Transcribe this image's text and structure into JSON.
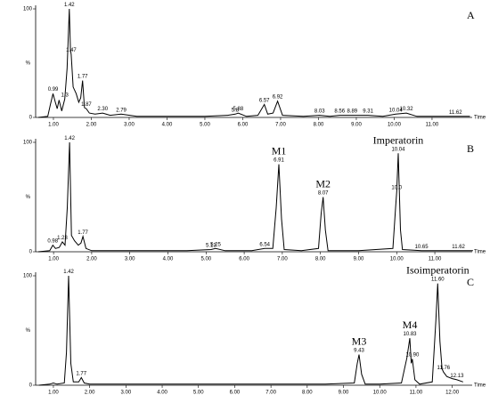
{
  "chart_data": [
    {
      "type": "line",
      "panel": "A",
      "color": "#000000",
      "xlabel": "Time",
      "ylabel": "%",
      "xlim": [
        0.53,
        12.06
      ],
      "ylim": [
        0,
        100
      ],
      "xticks": [
        {
          "value": 1,
          "label": "1.00"
        },
        {
          "value": 2,
          "label": "2.00"
        },
        {
          "value": 3,
          "label": "3.00"
        },
        {
          "value": 4,
          "label": "4.00"
        },
        {
          "value": 5,
          "label": "5.00"
        },
        {
          "value": 6,
          "label": "6.00"
        },
        {
          "value": 7,
          "label": "7.00"
        },
        {
          "value": 8,
          "label": "8.00"
        },
        {
          "value": 9,
          "label": "9.00"
        },
        {
          "value": 10,
          "label": "10.00"
        },
        {
          "value": 11,
          "label": "11.00"
        }
      ],
      "yticks": [
        0,
        100
      ],
      "x": [
        0.6,
        0.85,
        0.92,
        0.99,
        1.05,
        1.1,
        1.15,
        1.22,
        1.3,
        1.36,
        1.42,
        1.45,
        1.47,
        1.52,
        1.6,
        1.67,
        1.72,
        1.77,
        1.82,
        1.87,
        1.95,
        2.1,
        2.3,
        2.5,
        2.79,
        3.2,
        4.0,
        5.0,
        5.6,
        5.8,
        5.88,
        6.1,
        6.4,
        6.57,
        6.66,
        6.8,
        6.92,
        7.05,
        7.6,
        8.03,
        8.3,
        8.56,
        8.89,
        9.31,
        9.7,
        10.04,
        10.32,
        10.6,
        11.2,
        11.62,
        12.0
      ],
      "values": [
        0,
        1,
        12,
        22,
        14,
        8,
        16,
        6,
        17,
        45,
        100,
        62,
        58,
        28,
        22,
        14,
        18,
        34,
        9,
        8,
        4,
        3,
        4,
        2,
        3,
        1,
        1,
        1,
        2,
        3,
        4,
        1,
        2,
        12,
        3,
        4,
        15,
        2,
        1,
        2,
        1,
        2,
        2,
        2,
        1,
        3,
        4,
        1,
        1,
        1,
        1
      ],
      "peak_labels": [
        {
          "x": 0.99,
          "y": 22,
          "label": "0.99"
        },
        {
          "x": 1.3,
          "y": 17,
          "label": "1.3"
        },
        {
          "x": 1.42,
          "y": 100,
          "label": "1.42"
        },
        {
          "x": 1.47,
          "y": 58,
          "label": "1.47"
        },
        {
          "x": 1.77,
          "y": 34,
          "label": "1.77"
        },
        {
          "x": 1.87,
          "y": 8,
          "label": "1.87"
        },
        {
          "x": 2.3,
          "y": 4,
          "label": "2.30"
        },
        {
          "x": 2.79,
          "y": 3,
          "label": "2.79"
        },
        {
          "x": 5.8,
          "y": 3,
          "label": "5.8"
        },
        {
          "x": 5.88,
          "y": 4,
          "label": "5.88"
        },
        {
          "x": 6.57,
          "y": 12,
          "label": "6.57"
        },
        {
          "x": 6.92,
          "y": 15,
          "label": "6.92"
        },
        {
          "x": 8.03,
          "y": 2,
          "label": "8.03"
        },
        {
          "x": 8.56,
          "y": 2,
          "label": "8.56"
        },
        {
          "x": 8.89,
          "y": 2,
          "label": "8.89"
        },
        {
          "x": 9.31,
          "y": 2,
          "label": "9.31"
        },
        {
          "x": 10.04,
          "y": 3,
          "label": "10.04"
        },
        {
          "x": 10.32,
          "y": 4,
          "label": "10.32"
        },
        {
          "x": 11.62,
          "y": 1,
          "label": "11.62"
        }
      ]
    },
    {
      "type": "line",
      "panel": "B",
      "color": "#000000",
      "xlabel": "Time",
      "ylabel": "%",
      "xlim": [
        0.53,
        11.98
      ],
      "ylim": [
        0,
        100
      ],
      "xticks": [
        {
          "value": 1,
          "label": "1.00"
        },
        {
          "value": 2,
          "label": "2.00"
        },
        {
          "value": 3,
          "label": "3.00"
        },
        {
          "value": 4,
          "label": "4.00"
        },
        {
          "value": 5,
          "label": "5.00"
        },
        {
          "value": 6,
          "label": "6.00"
        },
        {
          "value": 7,
          "label": "7.00"
        },
        {
          "value": 8,
          "label": "8.00"
        },
        {
          "value": 9,
          "label": "9.00"
        },
        {
          "value": 10,
          "label": "10.00"
        },
        {
          "value": 11,
          "label": "11.00"
        }
      ],
      "yticks": [
        0,
        100
      ],
      "x": [
        0.6,
        0.9,
        0.98,
        1.05,
        1.15,
        1.23,
        1.3,
        1.36,
        1.42,
        1.47,
        1.55,
        1.65,
        1.72,
        1.77,
        1.85,
        2.0,
        3.0,
        4.5,
        5.13,
        5.25,
        5.5,
        6.2,
        6.54,
        6.75,
        6.84,
        6.91,
        6.98,
        7.05,
        7.5,
        7.95,
        8.02,
        8.07,
        8.13,
        8.2,
        9.0,
        9.9,
        9.97,
        10.0,
        10.04,
        10.1,
        10.15,
        10.65,
        11.2,
        11.62,
        12.0
      ],
      "values": [
        0,
        1,
        6,
        3,
        4,
        9,
        6,
        40,
        100,
        15,
        10,
        6,
        8,
        14,
        3,
        1,
        1,
        1,
        2,
        3,
        1,
        1,
        3,
        3,
        40,
        80,
        30,
        2,
        1,
        3,
        35,
        50,
        20,
        1,
        1,
        3,
        40,
        55,
        90,
        20,
        2,
        1,
        1,
        1,
        1
      ],
      "peak_labels": [
        {
          "x": 0.98,
          "y": 6,
          "label": "0.98"
        },
        {
          "x": 1.23,
          "y": 9,
          "label": "1.23"
        },
        {
          "x": 1.42,
          "y": 100,
          "label": "1.42"
        },
        {
          "x": 1.77,
          "y": 14,
          "label": "1.77"
        },
        {
          "x": 5.13,
          "y": 2,
          "label": "5.13"
        },
        {
          "x": 5.25,
          "y": 3,
          "label": "5.25"
        },
        {
          "x": 6.54,
          "y": 3,
          "label": "6.54"
        },
        {
          "x": 6.91,
          "y": 80,
          "label": "6.91",
          "compound": "M1"
        },
        {
          "x": 8.07,
          "y": 50,
          "label": "8.07",
          "compound": "M2"
        },
        {
          "x": 10.0,
          "y": 55,
          "label": "10.0"
        },
        {
          "x": 10.04,
          "y": 90,
          "label": "10.04",
          "compound": "Imperatorin"
        },
        {
          "x": 10.65,
          "y": 1,
          "label": "10.65"
        },
        {
          "x": 11.62,
          "y": 1,
          "label": "11.62"
        }
      ]
    },
    {
      "type": "line",
      "panel": "C",
      "color": "#000000",
      "xlabel": "Time",
      "ylabel": "%",
      "xlim": [
        0.51,
        12.55
      ],
      "ylim": [
        0,
        100
      ],
      "xticks": [
        {
          "value": 1,
          "label": "1.00"
        },
        {
          "value": 2,
          "label": "2.00"
        },
        {
          "value": 3,
          "label": "3.00"
        },
        {
          "value": 4,
          "label": "4.00"
        },
        {
          "value": 5,
          "label": "5.00"
        },
        {
          "value": 6,
          "label": "6.00"
        },
        {
          "value": 7,
          "label": "7.00"
        },
        {
          "value": 8,
          "label": "8.00"
        },
        {
          "value": 9,
          "label": "9.00"
        },
        {
          "value": 10,
          "label": "10.00"
        },
        {
          "value": 11,
          "label": "11.00"
        },
        {
          "value": 12,
          "label": "12.00"
        }
      ],
      "yticks": [
        0,
        100
      ],
      "x": [
        0.6,
        0.9,
        1.0,
        1.1,
        1.3,
        1.36,
        1.42,
        1.48,
        1.55,
        1.7,
        1.77,
        1.85,
        2.0,
        3.0,
        5.0,
        7.0,
        8.5,
        9.3,
        9.38,
        9.43,
        9.5,
        9.6,
        10.0,
        10.6,
        10.75,
        10.83,
        10.87,
        10.9,
        10.97,
        11.1,
        11.45,
        11.55,
        11.6,
        11.66,
        11.72,
        11.76,
        11.85,
        12.0,
        12.13,
        12.3
      ],
      "values": [
        0,
        1,
        2,
        1,
        2,
        30,
        100,
        20,
        3,
        3,
        7,
        2,
        1,
        1,
        1,
        1,
        1,
        2,
        20,
        28,
        10,
        1,
        1,
        2,
        25,
        43,
        20,
        24,
        5,
        1,
        3,
        60,
        93,
        40,
        15,
        12,
        8,
        6,
        5,
        3
      ],
      "peak_labels": [
        {
          "x": 1.42,
          "y": 100,
          "label": "1.42"
        },
        {
          "x": 1.77,
          "y": 7,
          "label": "1.77"
        },
        {
          "x": 9.43,
          "y": 28,
          "label": "9.43",
          "compound": "M3"
        },
        {
          "x": 10.83,
          "y": 43,
          "label": "10.83",
          "compound": "M4"
        },
        {
          "x": 10.9,
          "y": 24,
          "label": "10.90"
        },
        {
          "x": 11.6,
          "y": 93,
          "label": "11.60",
          "compound": "Isoimperatorin"
        },
        {
          "x": 11.76,
          "y": 12,
          "label": "11.76"
        },
        {
          "x": 12.13,
          "y": 5,
          "label": "12.13"
        }
      ]
    }
  ]
}
